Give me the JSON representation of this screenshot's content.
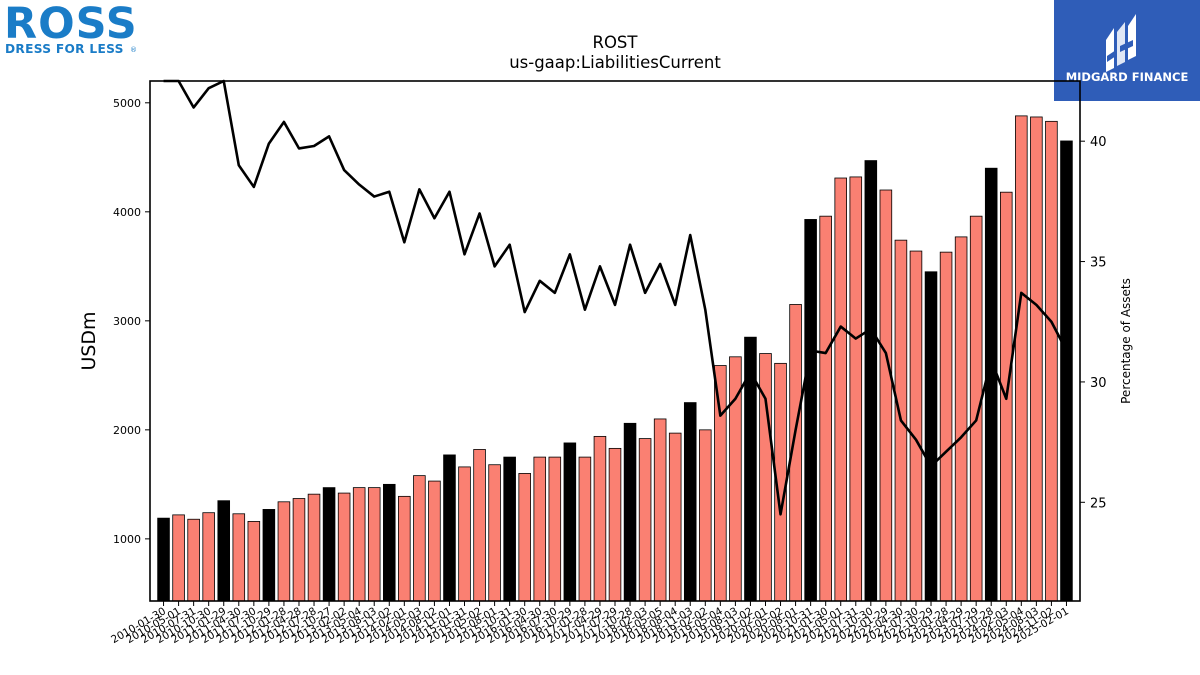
{
  "brand": {
    "left_logo_text": "ROSS",
    "left_logo_tagline": "DRESS FOR LESS",
    "left_logo_registered": "®",
    "right_logo_text": "MIDGARD FINANCE"
  },
  "colors": {
    "annual_bar": "#000000",
    "quarter_bar": "#fa8072",
    "bar_edge": "#000000",
    "line": "#000000",
    "right_logo_bg": "#2f5db8",
    "left_logo": "#1a7cc7"
  },
  "chart_data": {
    "type": "bar",
    "title": "ROST",
    "subtitle": "us-gaap:LiabilitiesCurrent",
    "ylabel": "USDm",
    "y2label": "Percentage of Assets",
    "ylim": [
      430,
      5200
    ],
    "y2lim": [
      20.9,
      42.5
    ],
    "yticks": [
      1000,
      2000,
      3000,
      4000,
      5000
    ],
    "y2ticks": [
      25,
      30,
      35,
      40
    ],
    "categories": [
      "2010-01-30",
      "2010-05-01",
      "2010-07-31",
      "2010-10-30",
      "2011-01-29",
      "2011-04-30",
      "2011-07-30",
      "2011-10-29",
      "2012-01-28",
      "2012-04-28",
      "2012-07-28",
      "2012-10-27",
      "2013-02-02",
      "2013-05-04",
      "2013-08-03",
      "2013-11-02",
      "2014-02-01",
      "2014-05-03",
      "2014-08-02",
      "2014-11-01",
      "2015-01-31",
      "2015-05-02",
      "2015-08-01",
      "2015-10-31",
      "2016-01-30",
      "2016-04-30",
      "2016-07-30",
      "2016-10-29",
      "2017-01-28",
      "2017-04-29",
      "2017-07-29",
      "2017-10-28",
      "2018-02-03",
      "2018-05-05",
      "2018-08-04",
      "2018-11-03",
      "2019-02-02",
      "2019-05-04",
      "2019-08-03",
      "2019-11-02",
      "2020-02-01",
      "2020-05-02",
      "2020-08-01",
      "2020-10-31",
      "2021-01-30",
      "2021-05-01",
      "2021-07-31",
      "2021-10-30",
      "2022-01-29",
      "2022-04-30",
      "2022-07-30",
      "2022-10-29",
      "2023-01-28",
      "2023-04-29",
      "2023-07-29",
      "2023-10-28",
      "2024-02-03",
      "2024-05-04",
      "2024-08-03",
      "2024-11-02",
      "2025-02-01"
    ],
    "annual": [
      true,
      false,
      false,
      false,
      true,
      false,
      false,
      true,
      false,
      false,
      false,
      true,
      false,
      false,
      false,
      true,
      false,
      false,
      false,
      true,
      false,
      false,
      false,
      true,
      false,
      false,
      false,
      true,
      false,
      false,
      false,
      true,
      false,
      false,
      false,
      true,
      false,
      false,
      false,
      true,
      false,
      false,
      false,
      true,
      false,
      false,
      false,
      true,
      false,
      false,
      false,
      true,
      false,
      false,
      false,
      true,
      false,
      false,
      false,
      false,
      true
    ],
    "values": [
      1190,
      1220,
      1180,
      1240,
      1350,
      1230,
      1160,
      1270,
      1340,
      1370,
      1410,
      1470,
      1420,
      1470,
      1470,
      1500,
      1390,
      1580,
      1530,
      1770,
      1660,
      1820,
      1680,
      1750,
      1600,
      1750,
      1750,
      1880,
      1750,
      1940,
      1830,
      2060,
      1920,
      2100,
      1970,
      2250,
      2000,
      2590,
      2670,
      2850,
      2700,
      2610,
      3150,
      3930,
      3960,
      4310,
      4320,
      4470,
      4200,
      3740,
      3640,
      3450,
      3630,
      3770,
      3960,
      4400,
      4180,
      4880,
      4870,
      4830,
      4650
    ],
    "series": [
      {
        "name": "Percentage of Assets",
        "axis": "right",
        "values": [
          42.9,
          42.6,
          41.4,
          42.2,
          43.4,
          39.0,
          38.1,
          39.9,
          40.8,
          39.7,
          39.8,
          40.2,
          38.8,
          38.2,
          37.7,
          37.9,
          35.8,
          38.0,
          36.8,
          37.9,
          35.3,
          37.0,
          34.8,
          35.7,
          32.9,
          34.2,
          33.7,
          35.3,
          33.0,
          34.8,
          33.2,
          35.7,
          33.7,
          34.9,
          33.2,
          36.1,
          33.0,
          28.6,
          29.3,
          30.4,
          29.3,
          24.5,
          28.0,
          31.3,
          31.2,
          32.3,
          31.8,
          32.2,
          31.2,
          28.4,
          27.6,
          26.5,
          27.1,
          27.7,
          28.4,
          30.9,
          29.3,
          33.7,
          33.2,
          32.5,
          31.3
        ]
      }
    ],
    "grid": false
  }
}
